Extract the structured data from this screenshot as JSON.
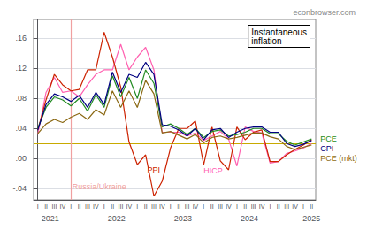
{
  "chart_data": {
    "type": "line",
    "title": "econbrowser.com",
    "categories": [
      "I",
      "II",
      "III",
      "IV",
      "I",
      "II",
      "III",
      "IV",
      "I",
      "II",
      "III",
      "IV",
      "I",
      "II",
      "III",
      "IV",
      "I",
      "II",
      "III",
      "IV",
      "I",
      "II",
      "III",
      "IV",
      "I",
      "II",
      "III",
      "IV",
      "I",
      "II",
      "III",
      "IV",
      "I",
      "II"
    ],
    "year_ticks": [
      {
        "value": 1.5,
        "label": "2021"
      },
      {
        "value": 9.5,
        "label": "2022"
      },
      {
        "value": 17.5,
        "label": "2023"
      },
      {
        "value": 25.5,
        "label": "2024"
      },
      {
        "value": 33.0,
        "label": "2025"
      }
    ],
    "series": [
      {
        "name": "HICP",
        "color": "#ff60b0",
        "values": [
          0.032,
          0.088,
          0.108,
          0.088,
          0.09,
          0.082,
          0.098,
          0.112,
          0.118,
          0.118,
          0.152,
          0.118,
          0.135,
          0.148,
          0.118,
          0.035,
          0.035,
          0.035,
          0.03,
          0.034,
          0.024,
          0.03,
          0.036,
          0.026,
          -0.01,
          0.042,
          0.036,
          0.034,
          -0.006,
          -0.004,
          0.007,
          0.01,
          0.014,
          0.02
        ]
      },
      {
        "name": "PPI",
        "color": "#cc2200",
        "values": [
          0.038,
          0.078,
          0.112,
          0.098,
          0.09,
          0.092,
          0.118,
          0.118,
          0.168,
          0.135,
          0.095,
          0.022,
          -0.008,
          0.005,
          -0.05,
          -0.03,
          0.014,
          0.04,
          0.04,
          0.05,
          -0.008,
          0.042,
          -0.003,
          -0.015,
          0.042,
          0.025,
          0.035,
          0.038,
          -0.004,
          -0.004,
          0.005,
          0.012,
          0.018,
          0.025
        ]
      },
      {
        "name": "PCE (mkt)",
        "color": "#8B6914",
        "values": [
          0.033,
          0.046,
          0.052,
          0.048,
          0.055,
          0.06,
          0.052,
          0.065,
          0.058,
          0.09,
          0.068,
          0.09,
          0.068,
          0.104,
          0.086,
          0.034,
          0.036,
          0.031,
          0.026,
          0.032,
          0.021,
          0.028,
          0.03,
          0.026,
          0.028,
          0.031,
          0.034,
          0.034,
          0.029,
          0.026,
          0.016,
          0.012,
          0.015,
          0.018
        ]
      },
      {
        "name": "PCE",
        "color": "#228B22",
        "values": [
          0.04,
          0.068,
          0.082,
          0.078,
          0.07,
          0.08,
          0.063,
          0.085,
          0.068,
          0.11,
          0.082,
          0.108,
          0.08,
          0.118,
          0.1,
          0.042,
          0.046,
          0.04,
          0.032,
          0.04,
          0.028,
          0.036,
          0.038,
          0.03,
          0.032,
          0.035,
          0.04,
          0.04,
          0.033,
          0.033,
          0.023,
          0.018,
          0.022,
          0.026
        ]
      },
      {
        "name": "CPI",
        "color": "#000080",
        "values": [
          0.038,
          0.072,
          0.086,
          0.082,
          0.076,
          0.084,
          0.068,
          0.088,
          0.072,
          0.115,
          0.088,
          0.112,
          0.108,
          0.128,
          0.112,
          0.045,
          0.043,
          0.038,
          0.03,
          0.04,
          0.025,
          0.038,
          0.04,
          0.028,
          0.035,
          0.04,
          0.042,
          0.042,
          0.035,
          0.035,
          0.02,
          0.016,
          0.019,
          0.024
        ]
      }
    ],
    "ylim": [
      -0.055,
      0.185
    ],
    "yticks": [
      {
        "value": -0.04,
        "label": "-.04"
      },
      {
        "value": 0.0,
        "label": ".00"
      },
      {
        "value": 0.04,
        "label": ".04"
      },
      {
        "value": 0.08,
        "label": ".08"
      },
      {
        "value": 0.12,
        "label": ".12"
      },
      {
        "value": 0.16,
        "label": ".16"
      }
    ],
    "hlines": [
      {
        "y": 0.02,
        "color": "#c8aa00"
      }
    ],
    "vlines": [
      {
        "x": 4,
        "color": "#f0a0a0"
      }
    ],
    "annotations": [
      {
        "text": "PPI",
        "x": 13.2,
        "y": -0.02,
        "color": "#cc2200"
      },
      {
        "text": "HICP",
        "x": 20.0,
        "y": -0.022,
        "color": "#ff60b0"
      },
      {
        "text": "Russia/Ukraine",
        "x": 4.15,
        "y": -0.043,
        "color": "#f0a0a0"
      },
      {
        "text": "Instantaneous\ninflation"
      }
    ],
    "grid": true
  }
}
